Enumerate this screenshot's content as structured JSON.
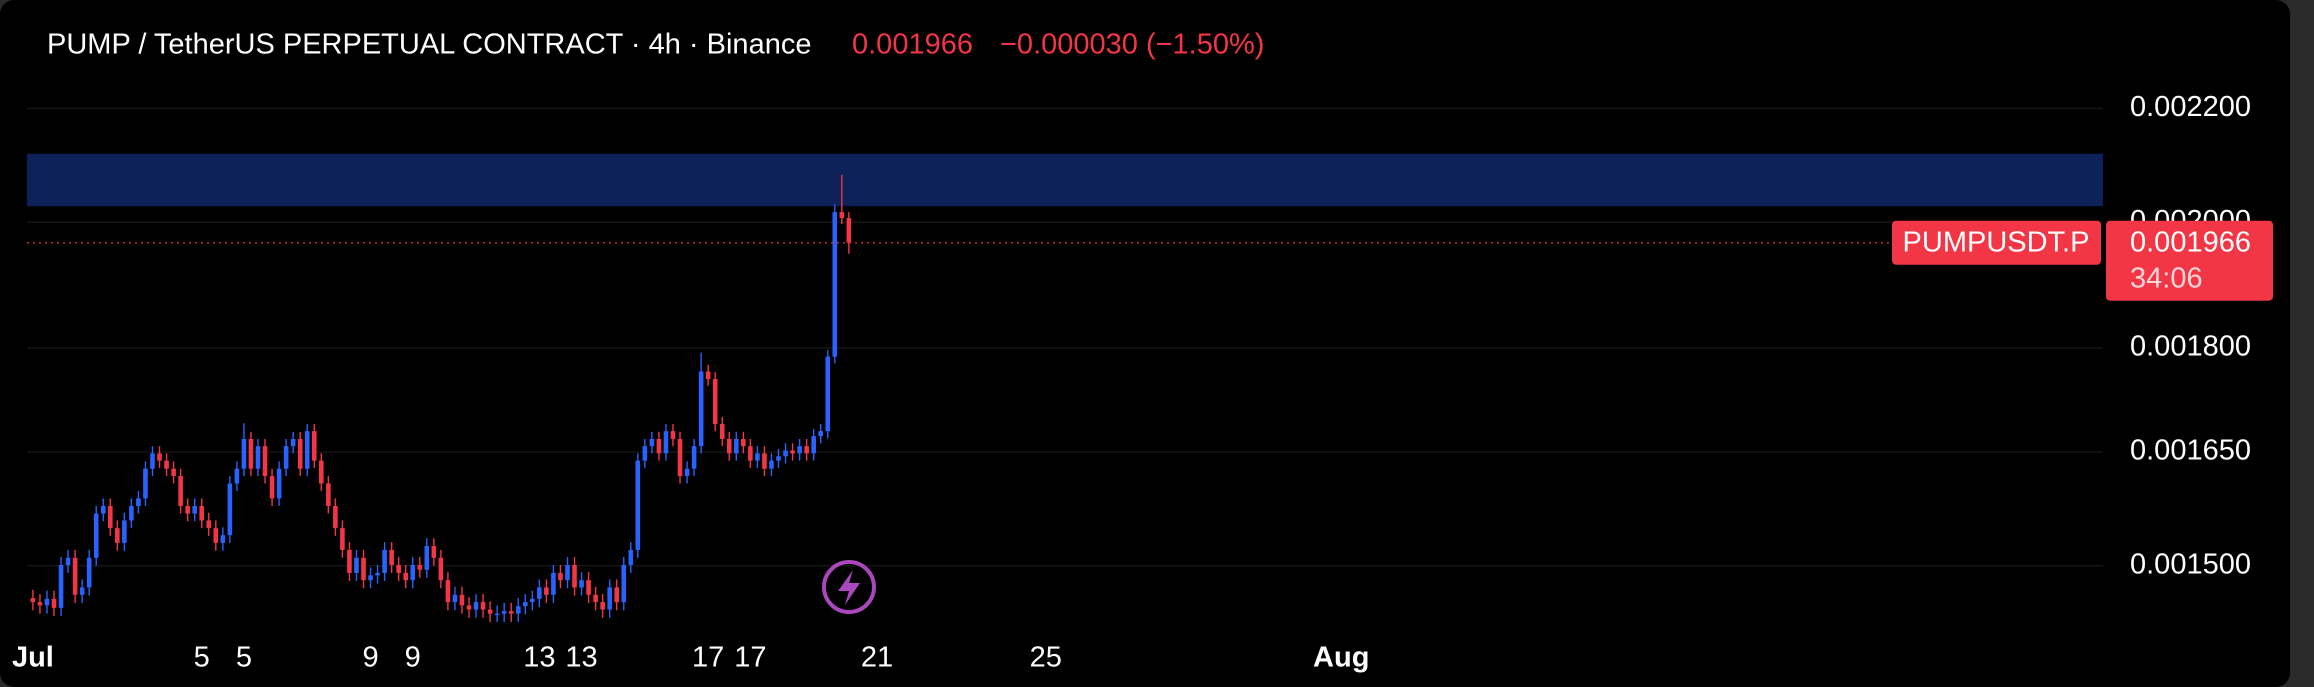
{
  "chart_data": {
    "type": "candlestick",
    "title": "PUMP / TetherUS PERPETUAL CONTRACT · 4h · Binance",
    "last_price": 0.001966,
    "change_label": "−0.000030 (−1.50%)",
    "symbol_tag": "PUMPUSDT.P",
    "countdown": "34:06",
    "up_color": "#2962ff",
    "down_color": "#f23645",
    "zone": [
      0.002027,
      0.002118
    ],
    "zone_color": "#0d2259",
    "log_scale": true,
    "grid": true,
    "ylim": [
      0.001425,
      0.002395
    ],
    "yticks": [
      {
        "value": 0.0015,
        "label": "0.001500"
      },
      {
        "value": 0.00165,
        "label": "0.001650"
      },
      {
        "value": 0.0018,
        "label": "0.001800"
      },
      {
        "value": 0.002,
        "label": "0.002000"
      },
      {
        "value": 0.0022,
        "label": "0.002200"
      }
    ],
    "xlim": [
      -0.14,
      49.05
    ],
    "xticks": [
      {
        "value": 0,
        "label": "Jul"
      },
      {
        "value": 4,
        "label": "5"
      },
      {
        "value": 8,
        "label": "9"
      },
      {
        "value": 12,
        "label": "13"
      },
      {
        "value": 16,
        "label": "17"
      },
      {
        "value": 20,
        "label": "21"
      },
      {
        "value": 24,
        "label": "25"
      },
      {
        "value": 31,
        "label": "Aug"
      },
      5,
      9,
      13,
      17
    ],
    "open": [
      0.00146,
      0.001455,
      0.001451,
      0.001459,
      0.001448,
      0.001501,
      0.00151,
      0.001464,
      0.001473,
      0.00151,
      0.001567,
      0.001577,
      0.001548,
      0.001529,
      0.001558,
      0.001577,
      0.001587,
      0.001627,
      0.001648,
      0.001638,
      0.001627,
      0.001617,
      0.001577,
      0.001567,
      0.001577,
      0.001558,
      0.001548,
      0.001529,
      0.001539,
      0.001607,
      0.001627,
      0.001668,
      0.001627,
      0.001658,
      0.001617,
      0.001587,
      0.001627,
      0.001658,
      0.001668,
      0.001627,
      0.001679,
      0.001638,
      0.001607,
      0.001577,
      0.001548,
      0.00152,
      0.001491,
      0.00151,
      0.001482,
      0.001488,
      0.001491,
      0.00152,
      0.001501,
      0.001491,
      0.001482,
      0.001501,
      0.001495,
      0.001525,
      0.00151,
      0.001482,
      0.001455,
      0.001464,
      0.001451,
      0.001446,
      0.001455,
      0.001446,
      0.001441,
      0.001441,
      0.001444,
      0.001441,
      0.00145,
      0.001455,
      0.001459,
      0.001473,
      0.001464,
      0.001491,
      0.001482,
      0.001501,
      0.001473,
      0.001482,
      0.001464,
      0.001455,
      0.001446,
      0.001473,
      0.001455,
      0.001501,
      0.00152,
      0.001638,
      0.001658,
      0.001668,
      0.001648,
      0.001679,
      0.001668,
      0.001617,
      0.001627,
      0.001658,
      0.001765,
      0.001754,
      0.001689,
      0.001668,
      0.001648,
      0.001668,
      0.001658,
      0.001638,
      0.001648,
      0.001627,
      0.001638,
      0.001644,
      0.001652,
      0.001648,
      0.001658,
      0.001648,
      0.001672,
      0.001679,
      0.001787,
      0.002017,
      0.002007
    ],
    "high": [
      0.00147,
      0.001465,
      0.001469,
      0.001469,
      0.001511,
      0.00152,
      0.00152,
      0.001483,
      0.00152,
      0.001577,
      0.001587,
      0.001587,
      0.001558,
      0.001568,
      0.001587,
      0.001597,
      0.001637,
      0.001658,
      0.001658,
      0.001648,
      0.001637,
      0.001627,
      0.001587,
      0.001587,
      0.001587,
      0.001568,
      0.001558,
      0.001549,
      0.001617,
      0.001637,
      0.00169,
      0.001678,
      0.001668,
      0.001668,
      0.001627,
      0.001637,
      0.001668,
      0.001678,
      0.001678,
      0.001689,
      0.001689,
      0.001648,
      0.001617,
      0.001587,
      0.001558,
      0.00153,
      0.00152,
      0.00152,
      0.001498,
      0.001501,
      0.00153,
      0.00153,
      0.001511,
      0.001501,
      0.001511,
      0.001511,
      0.001535,
      0.001535,
      0.00152,
      0.001492,
      0.001474,
      0.001474,
      0.001461,
      0.001465,
      0.001465,
      0.001456,
      0.001451,
      0.001454,
      0.001454,
      0.00146,
      0.001465,
      0.001469,
      0.001483,
      0.001483,
      0.001501,
      0.001501,
      0.001511,
      0.001511,
      0.001492,
      0.001492,
      0.001474,
      0.001465,
      0.001483,
      0.001483,
      0.001511,
      0.00153,
      0.001648,
      0.001668,
      0.001678,
      0.001678,
      0.001689,
      0.001689,
      0.001678,
      0.001637,
      0.001668,
      0.001793,
      0.001775,
      0.001764,
      0.001699,
      0.001678,
      0.001678,
      0.001678,
      0.001668,
      0.001658,
      0.001658,
      0.001648,
      0.001654,
      0.001662,
      0.001662,
      0.001668,
      0.001668,
      0.001682,
      0.001689,
      0.001797,
      0.00203,
      0.002081,
      0.002017
    ],
    "low": [
      0.001445,
      0.001441,
      0.001441,
      0.001438,
      0.001438,
      0.001491,
      0.001454,
      0.001454,
      0.001463,
      0.0015,
      0.001557,
      0.001538,
      0.001519,
      0.001519,
      0.001548,
      0.001567,
      0.001577,
      0.001617,
      0.001628,
      0.001617,
      0.001607,
      0.001567,
      0.001557,
      0.001557,
      0.001548,
      0.001538,
      0.001519,
      0.001519,
      0.001529,
      0.001597,
      0.001617,
      0.001617,
      0.001617,
      0.001607,
      0.001577,
      0.001577,
      0.001617,
      0.001648,
      0.001617,
      0.001617,
      0.001628,
      0.001597,
      0.001567,
      0.001538,
      0.00151,
      0.001481,
      0.001481,
      0.001472,
      0.001472,
      0.001478,
      0.001481,
      0.001491,
      0.001481,
      0.001472,
      0.001472,
      0.001485,
      0.001485,
      0.0015,
      0.001472,
      0.001445,
      0.001445,
      0.001441,
      0.001436,
      0.001436,
      0.001436,
      0.001431,
      0.001431,
      0.001431,
      0.001431,
      0.001431,
      0.00144,
      0.001445,
      0.001449,
      0.001454,
      0.001454,
      0.001472,
      0.001472,
      0.001463,
      0.001463,
      0.001454,
      0.001445,
      0.001436,
      0.001436,
      0.001445,
      0.001445,
      0.001491,
      0.00151,
      0.001628,
      0.001648,
      0.001638,
      0.001638,
      0.001658,
      0.001607,
      0.001607,
      0.001617,
      0.001648,
      0.001744,
      0.001679,
      0.001658,
      0.001638,
      0.001638,
      0.001648,
      0.001628,
      0.001628,
      0.001617,
      0.001617,
      0.001628,
      0.001634,
      0.001638,
      0.001638,
      0.001638,
      0.001638,
      0.001662,
      0.001669,
      0.001777,
      0.001997,
      0.001948
    ],
    "close": [
      0.001455,
      0.001451,
      0.001459,
      0.001448,
      0.001501,
      0.00151,
      0.001464,
      0.001473,
      0.00151,
      0.001567,
      0.001577,
      0.001548,
      0.001529,
      0.001558,
      0.001577,
      0.001587,
      0.001627,
      0.001648,
      0.001638,
      0.001627,
      0.001617,
      0.001577,
      0.001567,
      0.001577,
      0.001558,
      0.001548,
      0.001529,
      0.001539,
      0.001607,
      0.001627,
      0.001668,
      0.001627,
      0.001658,
      0.001617,
      0.001587,
      0.001627,
      0.001658,
      0.001668,
      0.001627,
      0.001679,
      0.001638,
      0.001607,
      0.001577,
      0.001548,
      0.00152,
      0.001491,
      0.00151,
      0.001482,
      0.001488,
      0.001491,
      0.00152,
      0.001501,
      0.001491,
      0.001482,
      0.001501,
      0.001495,
      0.001525,
      0.00151,
      0.001482,
      0.001455,
      0.001464,
      0.001451,
      0.001446,
      0.001455,
      0.001446,
      0.001441,
      0.001441,
      0.001444,
      0.001441,
      0.00145,
      0.001455,
      0.001459,
      0.001473,
      0.001464,
      0.001491,
      0.001482,
      0.001501,
      0.001473,
      0.001482,
      0.001464,
      0.001455,
      0.001446,
      0.001473,
      0.001455,
      0.001501,
      0.00152,
      0.001638,
      0.001658,
      0.001668,
      0.001648,
      0.001679,
      0.001668,
      0.001617,
      0.001627,
      0.001658,
      0.001765,
      0.001754,
      0.001689,
      0.001668,
      0.001648,
      0.001668,
      0.001658,
      0.001638,
      0.001648,
      0.001627,
      0.001638,
      0.001644,
      0.001652,
      0.001648,
      0.001658,
      0.001648,
      0.001672,
      0.001679,
      0.001787,
      0.002017,
      0.002007,
      0.001966
    ]
  }
}
